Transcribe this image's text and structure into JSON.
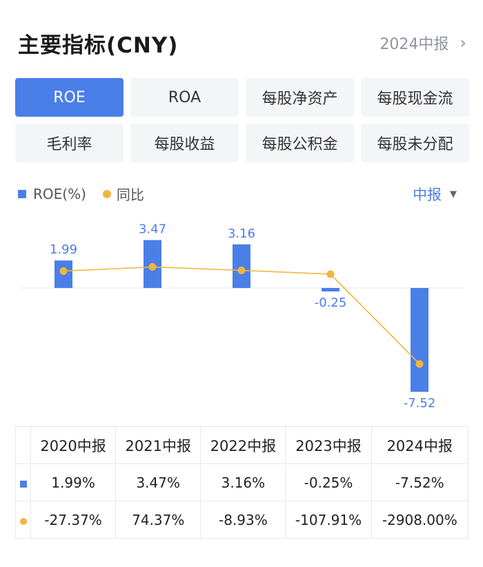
{
  "header": {
    "title": "主要指标(CNY)",
    "period_link": "2024中报"
  },
  "tabs": [
    {
      "label": "ROE",
      "active": true
    },
    {
      "label": "ROA"
    },
    {
      "label": "每股净资产"
    },
    {
      "label": "每股现金流"
    },
    {
      "label": "毛利率"
    },
    {
      "label": "每股收益"
    },
    {
      "label": "每股公积金"
    },
    {
      "label": "每股未分配"
    }
  ],
  "legend": {
    "bar_label": "ROE(%)",
    "line_label": "同比"
  },
  "period_select": "中报",
  "colors": {
    "accent": "#4a7fe8",
    "line": "#f2b63e",
    "negative": "#3a9b5c",
    "positive": "#e0473c"
  },
  "chart_data": {
    "type": "bar",
    "categories": [
      "2020中报",
      "2021中报",
      "2022中报",
      "2023中报",
      "2024中报"
    ],
    "series": [
      {
        "name": "ROE(%)",
        "type": "bar",
        "values": [
          1.99,
          3.47,
          3.16,
          -0.25,
          -7.52
        ],
        "labels": [
          "1.99",
          "3.47",
          "3.16",
          "-0.25",
          "-7.52"
        ]
      },
      {
        "name": "同比",
        "type": "line",
        "values": [
          -27.37,
          74.37,
          -8.93,
          -107.91,
          -2908.0
        ]
      }
    ],
    "grid": false
  },
  "table": {
    "headers": [
      "2020中报",
      "2021中报",
      "2022中报",
      "2023中报",
      "2024中报"
    ],
    "roe_row": [
      "1.99%",
      "3.47%",
      "3.16%",
      "-0.25%",
      "-7.52%"
    ],
    "yoy_row": [
      "-27.37%",
      "74.37%",
      "-8.93%",
      "-107.91%",
      "-2908.00%"
    ]
  }
}
